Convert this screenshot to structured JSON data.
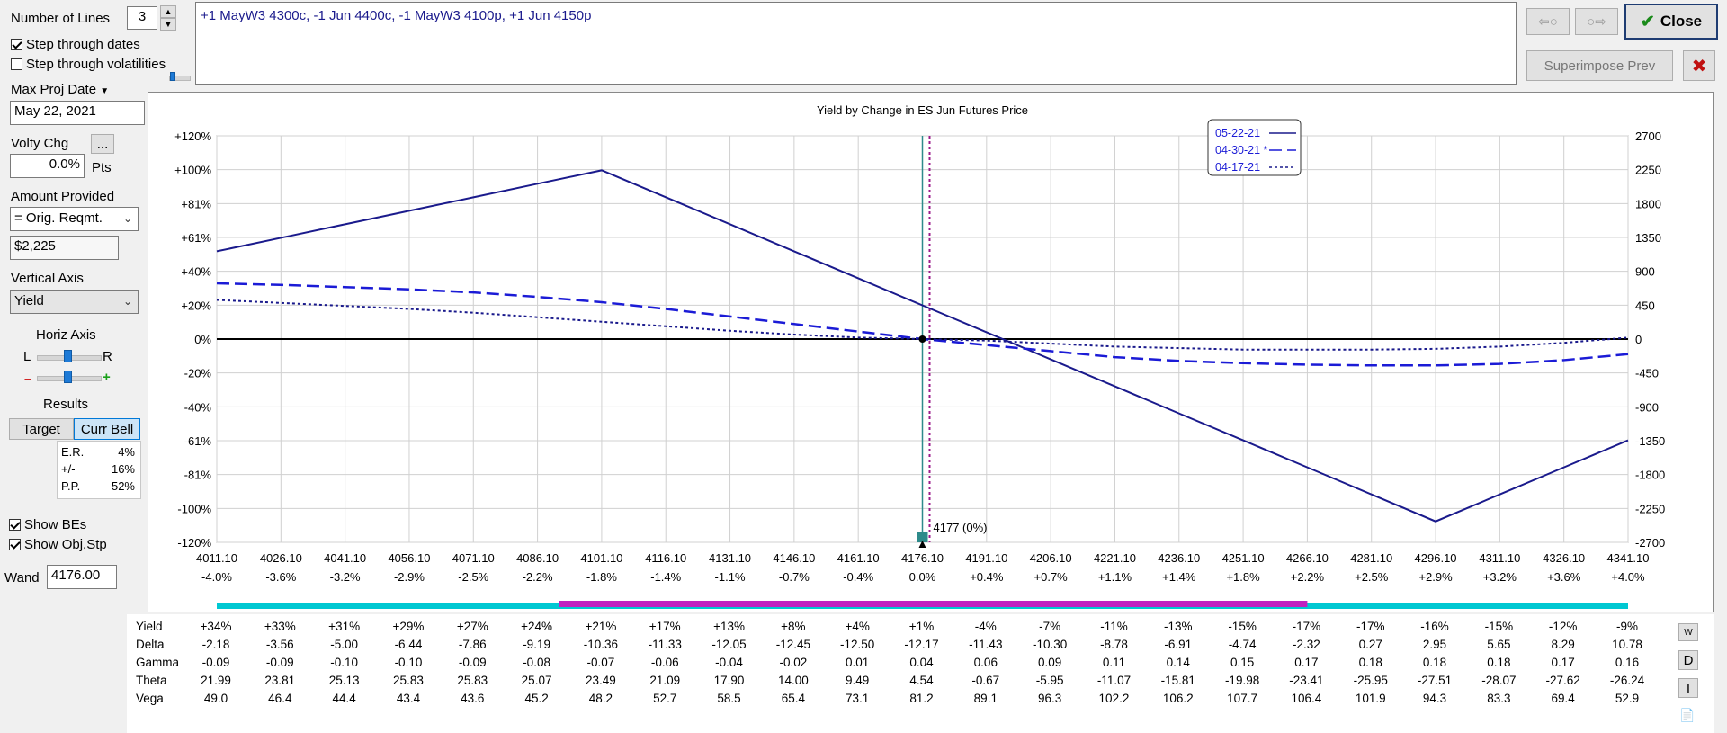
{
  "lines": {
    "label": "Number of Lines",
    "value": "3"
  },
  "step_dates": {
    "label": "Step through dates",
    "checked": true
  },
  "step_vols": {
    "label": "Step through volatilities",
    "checked": false
  },
  "max_proj": {
    "label": "Max Proj Date",
    "value": "May 22, 2021"
  },
  "volty": {
    "label": "Volty Chg",
    "value": "0.0%",
    "unit": "Pts",
    "dots": "..."
  },
  "amount": {
    "label": "Amount Provided",
    "selected": "= Orig. Reqmt.",
    "value": "$2,225"
  },
  "vertical_axis": {
    "label": "Vertical Axis",
    "selected": "Yield"
  },
  "horiz_axis": {
    "label": "Horiz Axis",
    "l": "L",
    "r": "R",
    "minus": "–",
    "plus": "+"
  },
  "results": {
    "label": "Results",
    "target": "Target",
    "curr_bell": "Curr Bell",
    "er_label": "E.R.",
    "er_value": "4%",
    "pm_label": "+/-",
    "pm_value": "16%",
    "pp_label": "P.P.",
    "pp_value": "52%"
  },
  "show_bes": {
    "label": "Show BEs",
    "checked": true
  },
  "show_obj": {
    "label": "Show Obj,Stp",
    "checked": true
  },
  "wand": {
    "label": "Wand",
    "value": "4176.00"
  },
  "position_text": "+1 MayW3 4300c, -1 Jun 4400c, -1 MayW3 4100p, +1 Jun 4150p",
  "buttons": {
    "close": "Close",
    "superimpose": "Superimpose Prev",
    "back_arrow": "⇦○",
    "fwd_arrow": "○⇨",
    "close_x": "✖",
    "side_w": "W",
    "side_d": "D",
    "side_i": "I"
  },
  "colors": {
    "line": "#1a1a8c",
    "dash": "#1b1bd6",
    "cyan": "#00c8d2",
    "magenta": "#c020c0",
    "wand": "#2e8b8b",
    "target": "#9b1b8b"
  },
  "chart_data": {
    "type": "line",
    "title": "Yield by Change in ES Jun Futures Price",
    "x": [
      4011.1,
      4026.1,
      4041.1,
      4056.1,
      4071.1,
      4086.1,
      4101.1,
      4116.1,
      4131.1,
      4146.1,
      4161.1,
      4176.1,
      4191.1,
      4206.1,
      4221.1,
      4236.1,
      4251.1,
      4266.1,
      4281.1,
      4296.1,
      4311.1,
      4326.1,
      4341.1
    ],
    "x_labels": [
      "4011.10",
      "4026.10",
      "4041.10",
      "4056.10",
      "4071.10",
      "4086.10",
      "4101.10",
      "4116.10",
      "4131.10",
      "4146.10",
      "4161.10",
      "4176.10",
      "4191.10",
      "4206.10",
      "4221.10",
      "4236.10",
      "4251.10",
      "4266.10",
      "4281.10",
      "4296.10",
      "4311.10",
      "4326.10",
      "4341.10"
    ],
    "pct_labels": [
      "-4.0%",
      "-3.6%",
      "-3.2%",
      "-2.9%",
      "-2.5%",
      "-2.2%",
      "-1.8%",
      "-1.4%",
      "-1.1%",
      "-0.7%",
      "-0.4%",
      "0.0%",
      "+0.4%",
      "+0.7%",
      "+1.1%",
      "+1.4%",
      "+1.8%",
      "+2.2%",
      "+2.5%",
      "+2.9%",
      "+3.2%",
      "+3.6%",
      "+4.0%"
    ],
    "y_left_ticks": [
      "+120%",
      "+100%",
      "+81%",
      "+61%",
      "+40%",
      "+20%",
      "0%",
      "-20%",
      "-40%",
      "-61%",
      "-81%",
      "-100%",
      "-120%"
    ],
    "y_right_ticks": [
      "2700",
      "2250",
      "1800",
      "1350",
      "900",
      "450",
      "0",
      "-450",
      "-900",
      "-1350",
      "-1800",
      "-2250",
      "-2700"
    ],
    "ylim": [
      -2700,
      2700
    ],
    "series": [
      {
        "name": "05-22-21",
        "style": "solid",
        "values": [
          1166,
          1345,
          1525,
          1704,
          1883,
          2063,
          2242,
          1884,
          1525,
          1166,
          807,
          448,
          90,
          -269,
          -628,
          -987,
          -1345,
          -1704,
          -2063,
          -2422,
          -2063,
          -1704,
          -1345
        ]
      },
      {
        "name": "04-30-21",
        "style": "dashed",
        "values": [
          740,
          720,
          690,
          660,
          620,
          560,
          490,
          400,
          300,
          200,
          100,
          0,
          -80,
          -160,
          -240,
          -290,
          -320,
          -340,
          -350,
          -350,
          -330,
          -280,
          -200
        ]
      },
      {
        "name": "04-17-21",
        "style": "dotted",
        "values": [
          520,
          480,
          440,
          400,
          350,
          290,
          230,
          170,
          110,
          60,
          20,
          0,
          -20,
          -60,
          -100,
          -120,
          -140,
          -140,
          -140,
          -130,
          -100,
          -50,
          20
        ]
      }
    ],
    "wand_label": "4177 (0%)",
    "grid": true,
    "legend": "top-center"
  },
  "stats": {
    "labels": [
      "Yield",
      "Delta",
      "Gamma",
      "Theta",
      "Vega"
    ],
    "rows": [
      [
        "+34%",
        "+33%",
        "+31%",
        "+29%",
        "+27%",
        "+24%",
        "+21%",
        "+17%",
        "+13%",
        "+8%",
        "+4%",
        "+1%",
        "-4%",
        "-7%",
        "-11%",
        "-13%",
        "-15%",
        "-17%",
        "-17%",
        "-16%",
        "-15%",
        "-12%",
        "-9%"
      ],
      [
        "-2.18",
        "-3.56",
        "-5.00",
        "-6.44",
        "-7.86",
        "-9.19",
        "-10.36",
        "-11.33",
        "-12.05",
        "-12.45",
        "-12.50",
        "-12.17",
        "-11.43",
        "-10.30",
        "-8.78",
        "-6.91",
        "-4.74",
        "-2.32",
        "0.27",
        "2.95",
        "5.65",
        "8.29",
        "10.78"
      ],
      [
        "-0.09",
        "-0.09",
        "-0.10",
        "-0.10",
        "-0.09",
        "-0.08",
        "-0.07",
        "-0.06",
        "-0.04",
        "-0.02",
        "0.01",
        "0.04",
        "0.06",
        "0.09",
        "0.11",
        "0.14",
        "0.15",
        "0.17",
        "0.18",
        "0.18",
        "0.18",
        "0.17",
        "0.16"
      ],
      [
        "21.99",
        "23.81",
        "25.13",
        "25.83",
        "25.83",
        "25.07",
        "23.49",
        "21.09",
        "17.90",
        "14.00",
        "9.49",
        "4.54",
        "-0.67",
        "-5.95",
        "-11.07",
        "-15.81",
        "-19.98",
        "-23.41",
        "-25.95",
        "-27.51",
        "-28.07",
        "-27.62",
        "-26.24"
      ],
      [
        "49.0",
        "46.4",
        "44.4",
        "43.4",
        "43.6",
        "45.2",
        "48.2",
        "52.7",
        "58.5",
        "65.4",
        "73.1",
        "81.2",
        "89.1",
        "96.3",
        "102.2",
        "106.2",
        "107.7",
        "106.4",
        "101.9",
        "94.3",
        "83.3",
        "69.4",
        "52.9"
      ]
    ]
  }
}
